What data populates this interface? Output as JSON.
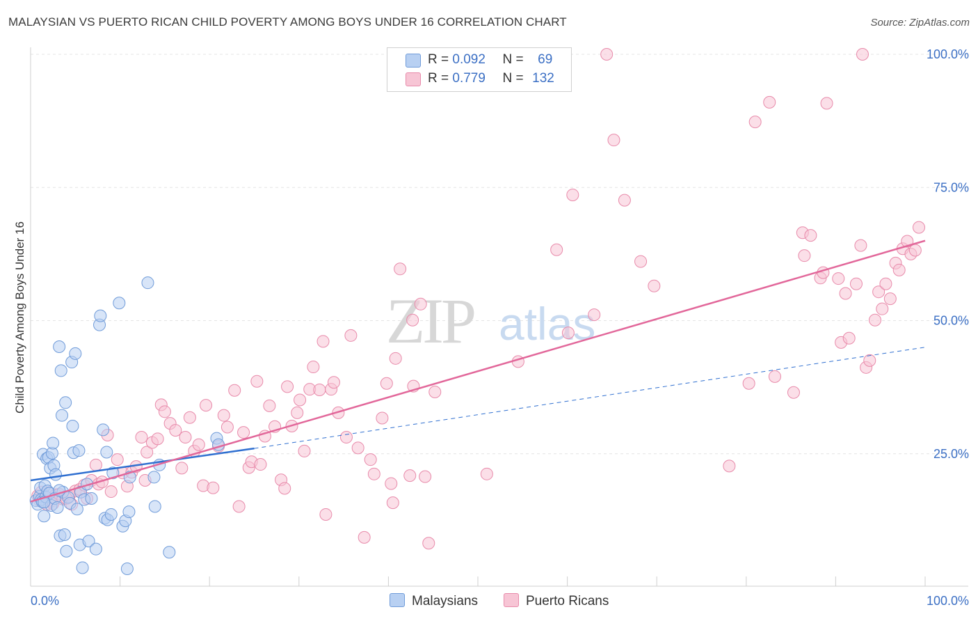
{
  "title": "MALAYSIAN VS PUERTO RICAN CHILD POVERTY AMONG BOYS UNDER 16 CORRELATION CHART",
  "source": "Source: ZipAtlas.com",
  "legend_top": {
    "rows": [
      {
        "r_label": "R =",
        "r_value": "0.092",
        "n_label": "N =",
        "n_value": "69"
      },
      {
        "r_label": "R =",
        "r_value": "0.779",
        "n_label": "N =",
        "n_value": "132"
      }
    ]
  },
  "legend_bottom": {
    "malaysians": "Malaysians",
    "puerto_ricans": "Puerto Ricans"
  },
  "colors": {
    "malaysians_fill": "#b8d0f2",
    "malaysians_stroke": "#6f9bd9",
    "malaysians_line": "#2f6fd0",
    "puerto_fill": "#f7c5d5",
    "puerto_stroke": "#e88aaa",
    "puerto_line": "#e2679a",
    "tick_label": "#3b6fc4"
  },
  "chart_data": {
    "type": "scatter",
    "title": "MALAYSIAN VS PUERTO RICAN CHILD POVERTY AMONG BOYS UNDER 16 CORRELATION CHART",
    "xlabel": "",
    "ylabel": "Child Poverty Among Boys Under 16",
    "xlim": [
      0,
      100
    ],
    "ylim": [
      0,
      100
    ],
    "x_tick_labels": [
      "0.0%",
      "100.0%"
    ],
    "y_tick_labels": [
      {
        "value": 25,
        "label": "25.0%"
      },
      {
        "value": 50,
        "label": "50.0%"
      },
      {
        "value": 75,
        "label": "75.0%"
      },
      {
        "value": 100,
        "label": "100.0%"
      }
    ],
    "watermark": {
      "zip": "ZIP",
      "atlas": "atlas"
    },
    "series": [
      {
        "name": "Malaysians",
        "R": 0.092,
        "N": 69,
        "trend": {
          "x0": 0,
          "y0": 20.0,
          "x1": 25,
          "y1": 26.0,
          "x_dash_end": 100,
          "y_dash_end": 45.0
        },
        "points": [
          [
            0.6,
            16.2
          ],
          [
            0.8,
            15.5
          ],
          [
            1.0,
            17.0
          ],
          [
            1.1,
            18.6
          ],
          [
            1.2,
            16.4
          ],
          [
            1.3,
            16.0
          ],
          [
            1.4,
            24.9
          ],
          [
            1.5,
            13.3
          ],
          [
            1.6,
            19.0
          ],
          [
            1.7,
            16.9
          ],
          [
            1.8,
            24.1
          ],
          [
            1.9,
            18.0
          ],
          [
            2.0,
            24.3
          ],
          [
            2.1,
            17.6
          ],
          [
            2.2,
            22.3
          ],
          [
            2.3,
            15.3
          ],
          [
            2.4,
            25.1
          ],
          [
            2.5,
            27.0
          ],
          [
            2.6,
            22.8
          ],
          [
            2.7,
            16.6
          ],
          [
            2.8,
            21.1
          ],
          [
            3.0,
            14.9
          ],
          [
            3.2,
            45.1
          ],
          [
            3.3,
            9.6
          ],
          [
            3.4,
            40.6
          ],
          [
            3.5,
            32.2
          ],
          [
            3.6,
            17.8
          ],
          [
            3.8,
            9.8
          ],
          [
            3.9,
            34.6
          ],
          [
            4.0,
            6.7
          ],
          [
            4.2,
            16.8
          ],
          [
            4.4,
            15.7
          ],
          [
            4.6,
            42.2
          ],
          [
            4.7,
            30.2
          ],
          [
            4.8,
            25.2
          ],
          [
            5.0,
            43.8
          ],
          [
            5.2,
            14.6
          ],
          [
            5.4,
            25.6
          ],
          [
            5.5,
            7.9
          ],
          [
            5.6,
            17.8
          ],
          [
            5.8,
            3.6
          ],
          [
            6.0,
            16.4
          ],
          [
            6.3,
            19.3
          ],
          [
            6.5,
            8.6
          ],
          [
            6.8,
            16.6
          ],
          [
            7.3,
            7.1
          ],
          [
            7.7,
            49.2
          ],
          [
            7.8,
            50.9
          ],
          [
            8.1,
            29.5
          ],
          [
            8.3,
            12.9
          ],
          [
            8.5,
            25.3
          ],
          [
            8.6,
            12.6
          ],
          [
            9.0,
            13.6
          ],
          [
            9.2,
            21.4
          ],
          [
            9.9,
            53.3
          ],
          [
            10.3,
            11.4
          ],
          [
            10.6,
            12.4
          ],
          [
            10.8,
            3.4
          ],
          [
            11.0,
            14.1
          ],
          [
            11.1,
            20.6
          ],
          [
            13.1,
            57.1
          ],
          [
            13.8,
            20.6
          ],
          [
            13.9,
            15.1
          ],
          [
            14.4,
            22.9
          ],
          [
            15.5,
            6.5
          ],
          [
            20.8,
            27.9
          ],
          [
            21.0,
            26.7
          ],
          [
            3.2,
            18.1
          ],
          [
            1.5,
            15.9
          ]
        ]
      },
      {
        "name": "Puerto Ricans",
        "R": 0.779,
        "N": 132,
        "trend": {
          "x0": 0,
          "y0": 16.0,
          "x1": 100,
          "y1": 65.0
        },
        "points": [
          [
            0.8,
            17.1
          ],
          [
            1.0,
            16.2
          ],
          [
            1.2,
            17.8
          ],
          [
            1.5,
            16.8
          ],
          [
            1.8,
            15.5
          ],
          [
            2.0,
            17.7
          ],
          [
            2.3,
            16.1
          ],
          [
            2.5,
            15.6
          ],
          [
            2.8,
            17.3
          ],
          [
            3.2,
            17.4
          ],
          [
            3.6,
            16.5
          ],
          [
            4.0,
            16.6
          ],
          [
            4.3,
            17.0
          ],
          [
            4.6,
            15.5
          ],
          [
            5.0,
            18.0
          ],
          [
            5.5,
            18.3
          ],
          [
            6.0,
            19.1
          ],
          [
            6.3,
            16.6
          ],
          [
            6.8,
            20.0
          ],
          [
            7.3,
            22.9
          ],
          [
            7.6,
            19.3
          ],
          [
            8.0,
            19.7
          ],
          [
            8.6,
            28.5
          ],
          [
            9.0,
            17.9
          ],
          [
            9.7,
            23.9
          ],
          [
            10.3,
            21.4
          ],
          [
            10.8,
            18.9
          ],
          [
            11.3,
            21.5
          ],
          [
            11.8,
            22.6
          ],
          [
            12.4,
            28.1
          ],
          [
            12.8,
            20.0
          ],
          [
            13.0,
            25.3
          ],
          [
            13.6,
            27.1
          ],
          [
            14.2,
            27.8
          ],
          [
            14.6,
            34.2
          ],
          [
            15.0,
            32.9
          ],
          [
            15.6,
            30.7
          ],
          [
            16.2,
            29.4
          ],
          [
            16.9,
            22.3
          ],
          [
            17.3,
            28.1
          ],
          [
            17.8,
            31.8
          ],
          [
            18.3,
            25.5
          ],
          [
            18.8,
            26.7
          ],
          [
            19.3,
            19.0
          ],
          [
            19.6,
            34.1
          ],
          [
            20.4,
            18.6
          ],
          [
            21.0,
            26.4
          ],
          [
            21.6,
            32.2
          ],
          [
            22.0,
            30.0
          ],
          [
            22.8,
            36.9
          ],
          [
            23.3,
            15.1
          ],
          [
            23.8,
            29.0
          ],
          [
            24.4,
            22.4
          ],
          [
            24.7,
            23.5
          ],
          [
            25.3,
            38.6
          ],
          [
            25.7,
            23.0
          ],
          [
            26.2,
            28.3
          ],
          [
            26.7,
            34.0
          ],
          [
            27.3,
            30.1
          ],
          [
            28.0,
            20.1
          ],
          [
            28.4,
            18.5
          ],
          [
            28.7,
            37.6
          ],
          [
            29.2,
            30.2
          ],
          [
            29.8,
            32.7
          ],
          [
            30.1,
            35.1
          ],
          [
            30.6,
            25.5
          ],
          [
            31.2,
            37.1
          ],
          [
            31.6,
            41.3
          ],
          [
            32.3,
            37.0
          ],
          [
            32.7,
            46.1
          ],
          [
            33.0,
            13.6
          ],
          [
            33.6,
            37.1
          ],
          [
            33.9,
            38.4
          ],
          [
            34.4,
            32.7
          ],
          [
            35.3,
            28.1
          ],
          [
            35.8,
            47.2
          ],
          [
            36.6,
            26.1
          ],
          [
            37.3,
            9.3
          ],
          [
            38.0,
            23.9
          ],
          [
            38.4,
            21.2
          ],
          [
            39.3,
            31.7
          ],
          [
            39.8,
            38.2
          ],
          [
            40.3,
            19.4
          ],
          [
            40.5,
            15.8
          ],
          [
            40.8,
            42.9
          ],
          [
            41.3,
            59.7
          ],
          [
            42.4,
            20.9
          ],
          [
            42.7,
            50.1
          ],
          [
            42.8,
            37.7
          ],
          [
            43.6,
            53.1
          ],
          [
            44.1,
            20.7
          ],
          [
            44.5,
            8.2
          ],
          [
            45.2,
            36.6
          ],
          [
            51.0,
            21.2
          ],
          [
            54.5,
            42.3
          ],
          [
            58.8,
            63.3
          ],
          [
            60.1,
            47.7
          ],
          [
            60.6,
            73.6
          ],
          [
            63.0,
            51.1
          ],
          [
            64.4,
            100.0
          ],
          [
            65.2,
            83.9
          ],
          [
            66.4,
            72.6
          ],
          [
            68.2,
            61.1
          ],
          [
            69.7,
            56.5
          ],
          [
            78.1,
            22.7
          ],
          [
            80.3,
            38.2
          ],
          [
            81.0,
            87.3
          ],
          [
            82.6,
            91.0
          ],
          [
            83.2,
            39.5
          ],
          [
            85.3,
            36.5
          ],
          [
            86.3,
            66.5
          ],
          [
            86.5,
            62.2
          ],
          [
            87.2,
            66.0
          ],
          [
            88.3,
            58.0
          ],
          [
            88.6,
            59.0
          ],
          [
            89.0,
            90.8
          ],
          [
            90.3,
            57.9
          ],
          [
            90.6,
            45.9
          ],
          [
            91.1,
            55.1
          ],
          [
            91.5,
            46.7
          ],
          [
            92.3,
            56.9
          ],
          [
            92.8,
            64.1
          ],
          [
            93.0,
            100.0
          ],
          [
            93.4,
            41.2
          ],
          [
            93.8,
            42.5
          ],
          [
            94.4,
            50.1
          ],
          [
            94.8,
            55.4
          ],
          [
            95.2,
            52.2
          ],
          [
            95.6,
            56.9
          ],
          [
            96.1,
            54.1
          ],
          [
            96.7,
            60.8
          ],
          [
            97.1,
            59.5
          ],
          [
            97.5,
            63.5
          ],
          [
            98.0,
            64.9
          ],
          [
            98.4,
            62.5
          ],
          [
            98.9,
            63.2
          ],
          [
            99.3,
            67.5
          ]
        ]
      }
    ]
  }
}
